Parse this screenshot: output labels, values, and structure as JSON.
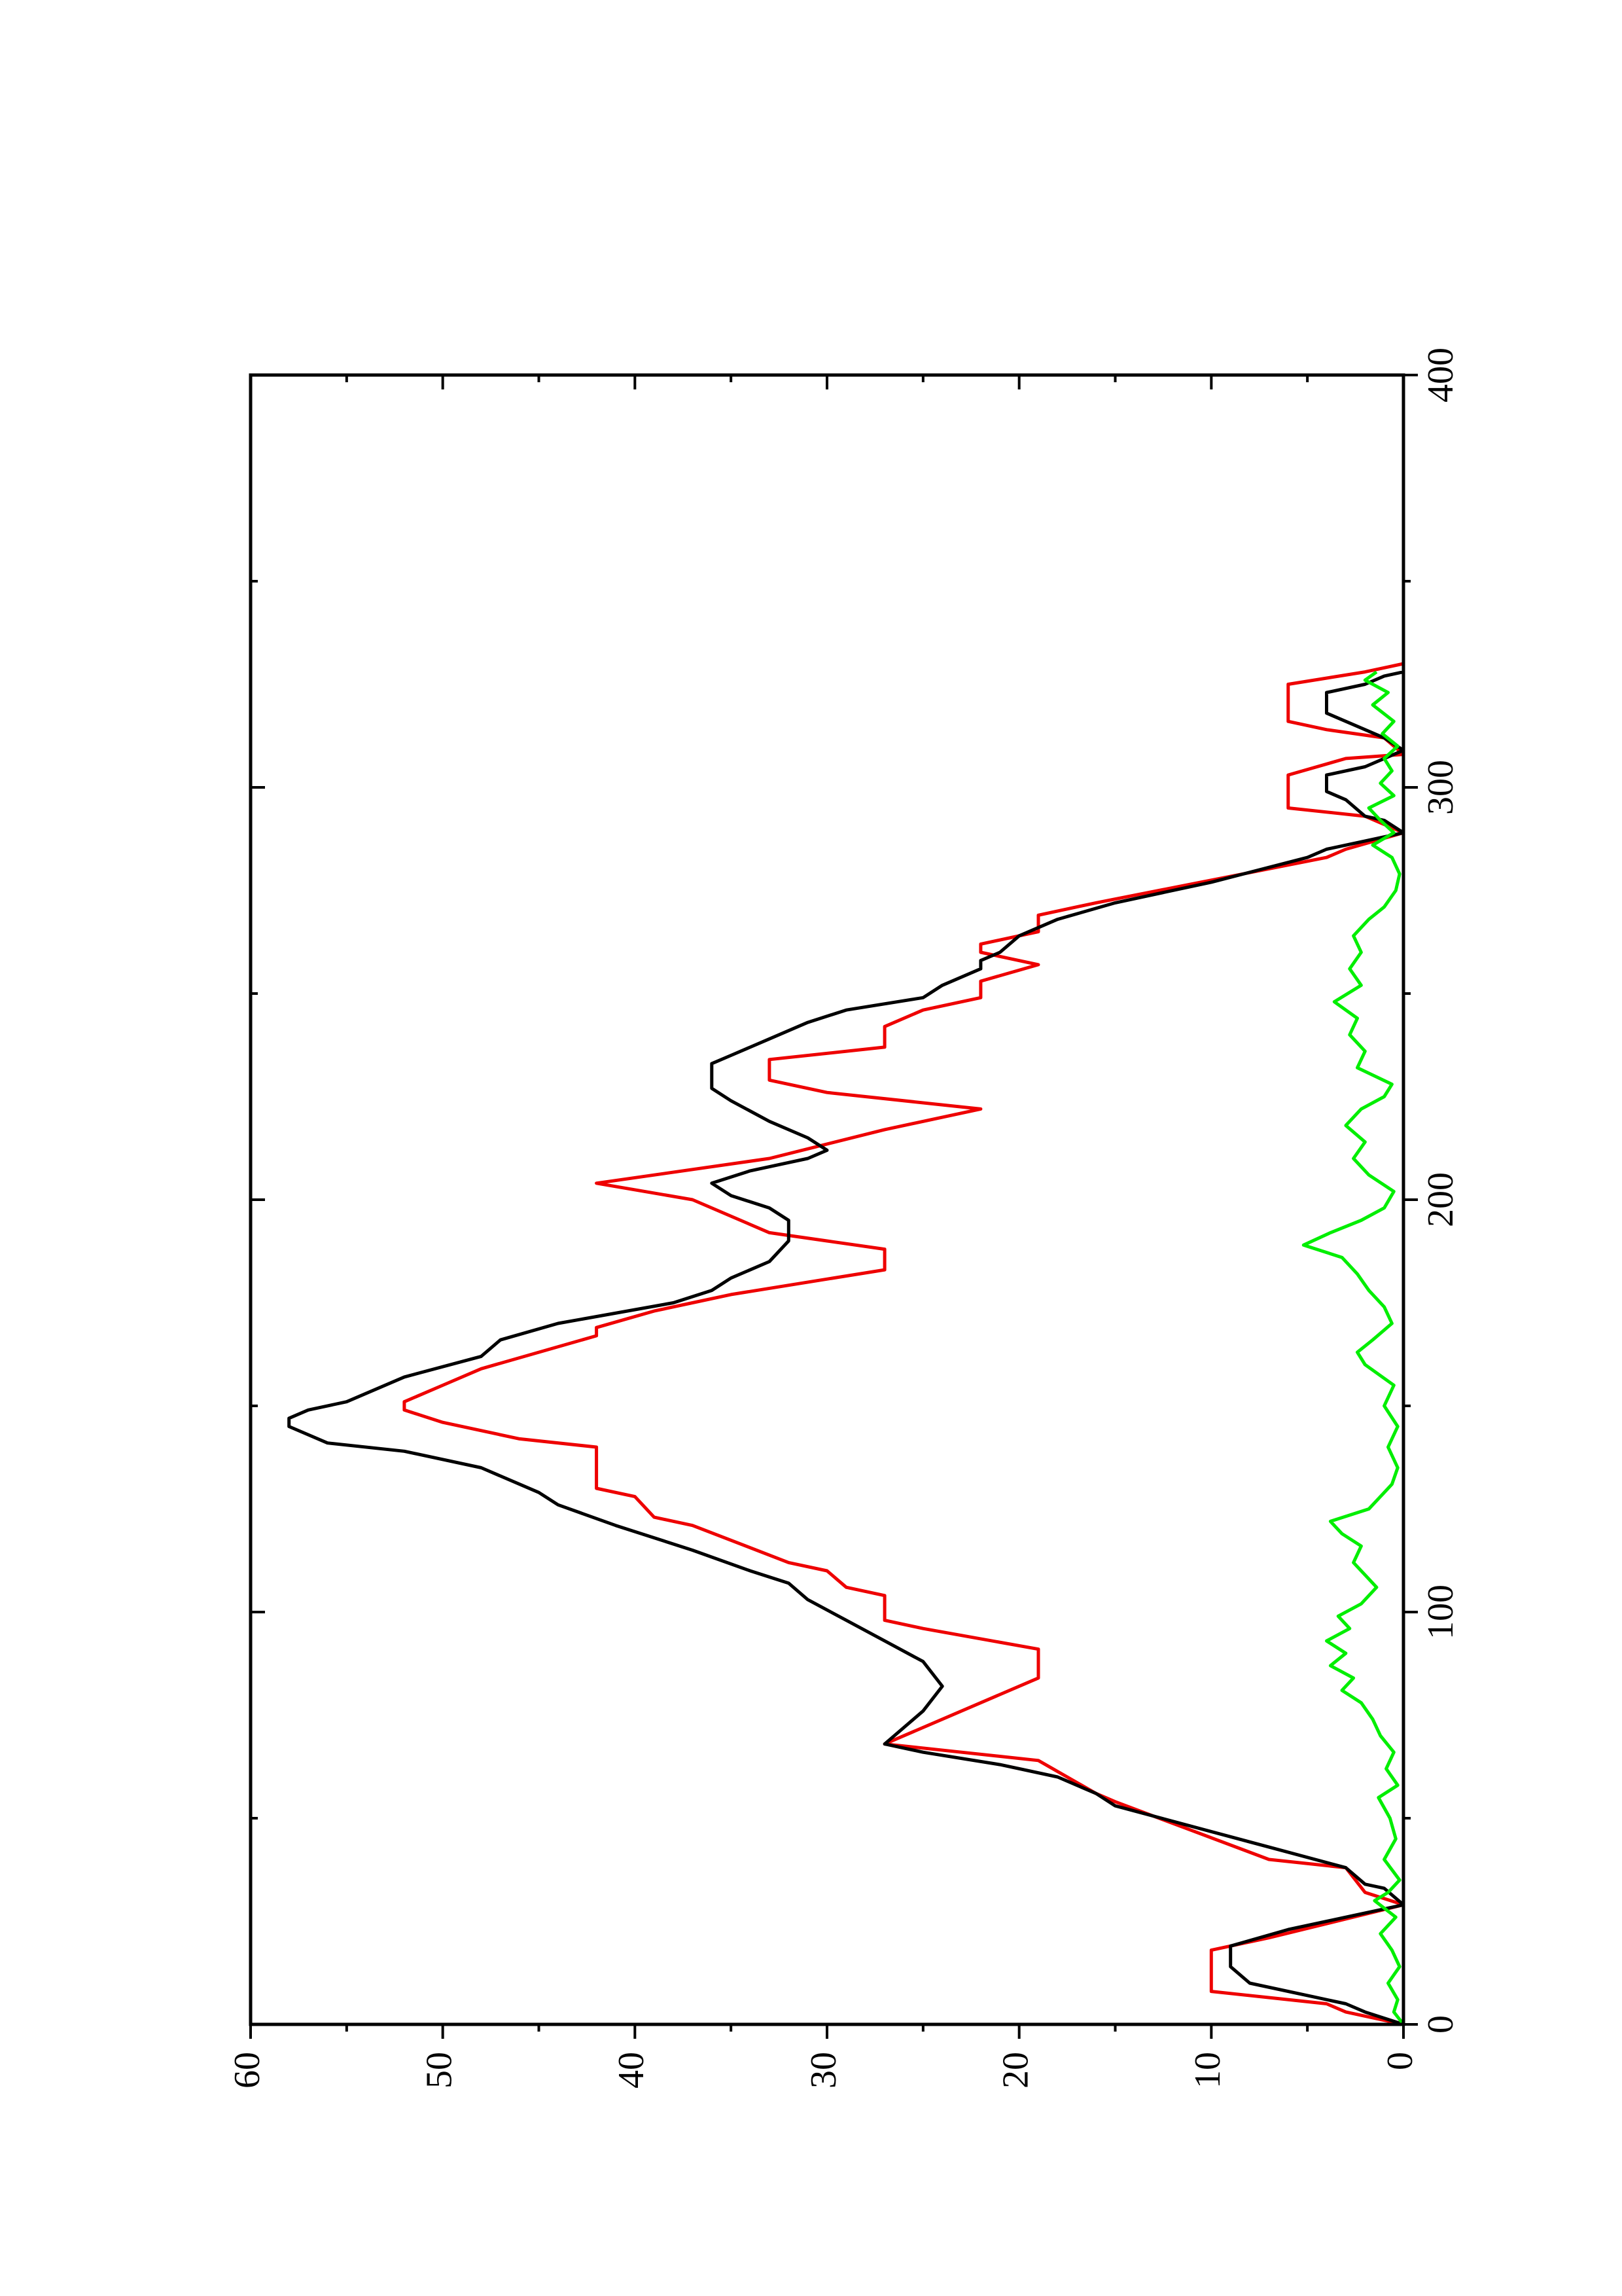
{
  "chart_data": {
    "type": "line",
    "orientation": "rotated-90-ccw",
    "xlim": [
      0,
      400
    ],
    "ylim": [
      0,
      60
    ],
    "x_ticks": [
      "0",
      "100",
      "200",
      "300",
      "400"
    ],
    "y_ticks": [
      "0",
      "10",
      "20",
      "30",
      "40",
      "50",
      "60"
    ],
    "x_minor_step": 50,
    "y_minor_step": 5,
    "grid": false,
    "legend": "none",
    "title": "",
    "xlabel": "",
    "ylabel": "",
    "series": [
      {
        "color": "#ee0000",
        "points": [
          [
            0,
            0
          ],
          [
            3,
            3
          ],
          [
            5,
            4
          ],
          [
            8,
            10
          ],
          [
            18,
            10
          ],
          [
            21,
            7
          ],
          [
            29,
            0
          ],
          [
            32,
            2
          ],
          [
            38,
            3
          ],
          [
            40,
            7
          ],
          [
            54,
            15
          ],
          [
            56,
            16
          ],
          [
            64,
            19
          ],
          [
            66,
            23
          ],
          [
            68,
            27
          ],
          [
            84,
            19
          ],
          [
            91,
            19
          ],
          [
            96,
            25
          ],
          [
            98,
            27
          ],
          [
            104,
            27
          ],
          [
            106,
            29
          ],
          [
            110,
            30
          ],
          [
            112,
            32
          ],
          [
            121,
            37
          ],
          [
            123,
            39
          ],
          [
            128,
            40
          ],
          [
            130,
            42
          ],
          [
            140,
            42
          ],
          [
            142,
            46
          ],
          [
            146,
            50
          ],
          [
            149,
            52
          ],
          [
            151,
            52
          ],
          [
            155,
            50
          ],
          [
            159,
            48
          ],
          [
            167,
            42
          ],
          [
            169,
            42
          ],
          [
            173,
            39
          ],
          [
            175,
            37
          ],
          [
            177,
            35
          ],
          [
            183,
            27
          ],
          [
            188,
            27
          ],
          [
            190,
            30
          ],
          [
            192,
            33
          ],
          [
            200,
            37
          ],
          [
            204,
            42
          ],
          [
            210,
            33
          ],
          [
            217,
            27
          ],
          [
            222,
            22
          ],
          [
            226,
            30
          ],
          [
            229,
            33
          ],
          [
            234,
            33
          ],
          [
            237,
            27
          ],
          [
            242,
            27
          ],
          [
            246,
            25
          ],
          [
            249,
            22
          ],
          [
            253,
            22
          ],
          [
            257,
            19
          ],
          [
            260,
            22
          ],
          [
            262,
            22
          ],
          [
            265,
            19
          ],
          [
            269,
            19
          ],
          [
            272,
            16
          ],
          [
            283,
            4
          ],
          [
            285,
            3
          ],
          [
            289,
            0
          ],
          [
            293,
            2
          ],
          [
            295,
            6
          ],
          [
            303,
            6
          ],
          [
            307,
            3
          ],
          [
            308,
            0
          ],
          [
            312,
            1
          ],
          [
            314,
            4
          ],
          [
            316,
            6
          ],
          [
            325,
            6
          ],
          [
            328,
            2
          ],
          [
            330,
            0
          ]
        ]
      },
      {
        "color": "#000000",
        "points": [
          [
            0,
            0
          ],
          [
            3,
            2
          ],
          [
            5,
            3
          ],
          [
            10,
            8
          ],
          [
            14,
            9
          ],
          [
            19,
            9
          ],
          [
            23,
            6
          ],
          [
            26,
            3
          ],
          [
            29,
            0
          ],
          [
            33,
            1
          ],
          [
            34,
            2
          ],
          [
            38,
            3
          ],
          [
            43,
            7
          ],
          [
            53,
            15
          ],
          [
            56,
            16
          ],
          [
            60,
            18
          ],
          [
            63,
            21
          ],
          [
            66,
            25
          ],
          [
            68,
            27
          ],
          [
            72,
            26
          ],
          [
            76,
            25
          ],
          [
            82,
            24
          ],
          [
            88,
            25
          ],
          [
            93,
            27
          ],
          [
            98,
            29
          ],
          [
            103,
            31
          ],
          [
            107,
            32
          ],
          [
            110,
            34
          ],
          [
            115,
            37
          ],
          [
            121,
            41
          ],
          [
            126,
            44
          ],
          [
            129,
            45
          ],
          [
            131,
            46
          ],
          [
            135,
            48
          ],
          [
            139,
            52
          ],
          [
            141,
            56
          ],
          [
            145,
            58
          ],
          [
            147,
            58
          ],
          [
            149,
            57
          ],
          [
            151,
            55
          ],
          [
            157,
            52
          ],
          [
            162,
            48
          ],
          [
            166,
            47
          ],
          [
            170,
            44
          ],
          [
            175,
            38
          ],
          [
            178,
            36
          ],
          [
            181,
            35
          ],
          [
            185,
            33
          ],
          [
            190,
            32
          ],
          [
            195,
            32
          ],
          [
            198,
            33
          ],
          [
            201,
            35
          ],
          [
            204,
            36
          ],
          [
            207,
            34
          ],
          [
            210,
            31
          ],
          [
            212,
            30
          ],
          [
            215,
            31
          ],
          [
            219,
            33
          ],
          [
            224,
            35
          ],
          [
            227,
            36
          ],
          [
            231,
            36
          ],
          [
            233,
            36
          ],
          [
            235,
            35
          ],
          [
            239,
            33
          ],
          [
            243,
            31
          ],
          [
            246,
            29
          ],
          [
            249,
            25
          ],
          [
            252,
            24
          ],
          [
            256,
            22
          ],
          [
            258,
            22
          ],
          [
            260,
            21
          ],
          [
            264,
            20
          ],
          [
            268,
            18
          ],
          [
            272,
            15
          ],
          [
            277,
            10
          ],
          [
            283,
            5
          ],
          [
            285,
            4
          ],
          [
            287,
            2
          ],
          [
            289,
            0
          ],
          [
            292,
            1
          ],
          [
            293,
            2
          ],
          [
            297,
            3
          ],
          [
            299,
            4
          ],
          [
            303,
            4
          ],
          [
            305,
            2
          ],
          [
            307,
            1
          ],
          [
            309,
            0
          ],
          [
            312,
            1
          ],
          [
            314,
            2
          ],
          [
            318,
            4
          ],
          [
            323,
            4
          ],
          [
            325,
            2
          ],
          [
            327,
            1
          ],
          [
            328,
            0
          ],
          [
            330,
            0
          ]
        ]
      },
      {
        "color": "#00ee00",
        "points": [
          [
            0,
            0
          ],
          [
            3,
            0.5
          ],
          [
            6,
            0.3
          ],
          [
            10,
            0.8
          ],
          [
            14,
            0.2
          ],
          [
            18,
            0.6
          ],
          [
            22,
            1.2
          ],
          [
            26,
            0.4
          ],
          [
            30,
            1.5
          ],
          [
            32,
            0.8
          ],
          [
            35,
            0.2
          ],
          [
            40,
            1
          ],
          [
            45,
            0.4
          ],
          [
            50,
            0.7
          ],
          [
            55,
            1.3
          ],
          [
            58,
            0.3
          ],
          [
            62,
            0.9
          ],
          [
            66,
            0.5
          ],
          [
            70,
            1.2
          ],
          [
            74,
            1.6
          ],
          [
            78,
            2.2
          ],
          [
            81,
            3.2
          ],
          [
            84,
            2.6
          ],
          [
            87,
            3.8
          ],
          [
            90,
            3
          ],
          [
            93,
            4
          ],
          [
            96,
            2.8
          ],
          [
            99,
            3.4
          ],
          [
            102,
            2.2
          ],
          [
            106,
            1.4
          ],
          [
            109,
            2
          ],
          [
            112,
            2.6
          ],
          [
            116,
            2.2
          ],
          [
            119,
            3.2
          ],
          [
            122,
            3.8
          ],
          [
            125,
            1.8
          ],
          [
            128,
            1.2
          ],
          [
            131,
            0.6
          ],
          [
            135,
            0.3
          ],
          [
            140,
            0.8
          ],
          [
            145,
            0.3
          ],
          [
            150,
            1
          ],
          [
            155,
            0.5
          ],
          [
            160,
            2
          ],
          [
            163,
            2.4
          ],
          [
            166,
            1.6
          ],
          [
            170,
            0.6
          ],
          [
            174,
            1
          ],
          [
            178,
            1.8
          ],
          [
            182,
            2.4
          ],
          [
            186,
            3.2
          ],
          [
            189,
            5.2
          ],
          [
            192,
            3.8
          ],
          [
            195,
            2.2
          ],
          [
            198,
            1
          ],
          [
            202,
            0.5
          ],
          [
            206,
            1.8
          ],
          [
            210,
            2.6
          ],
          [
            214,
            2
          ],
          [
            218,
            3
          ],
          [
            222,
            2.2
          ],
          [
            225,
            1
          ],
          [
            228,
            0.6
          ],
          [
            232,
            2.4
          ],
          [
            236,
            2
          ],
          [
            240,
            2.8
          ],
          [
            244,
            2.4
          ],
          [
            248,
            3.6
          ],
          [
            252,
            2.2
          ],
          [
            256,
            2.8
          ],
          [
            260,
            2.2
          ],
          [
            264,
            2.6
          ],
          [
            268,
            1.8
          ],
          [
            271,
            1
          ],
          [
            275,
            0.4
          ],
          [
            279,
            0.2
          ],
          [
            283,
            0.6
          ],
          [
            286,
            1.6
          ],
          [
            289,
            0.5
          ],
          [
            292,
            1.2
          ],
          [
            295,
            1.8
          ],
          [
            298,
            0.5
          ],
          [
            301,
            1.2
          ],
          [
            304,
            0.6
          ],
          [
            307,
            1
          ],
          [
            310,
            0.3
          ],
          [
            313,
            1.1
          ],
          [
            316,
            0.5
          ],
          [
            320,
            1.6
          ],
          [
            323,
            0.8
          ],
          [
            326,
            2
          ],
          [
            328,
            1.4
          ]
        ]
      }
    ]
  }
}
